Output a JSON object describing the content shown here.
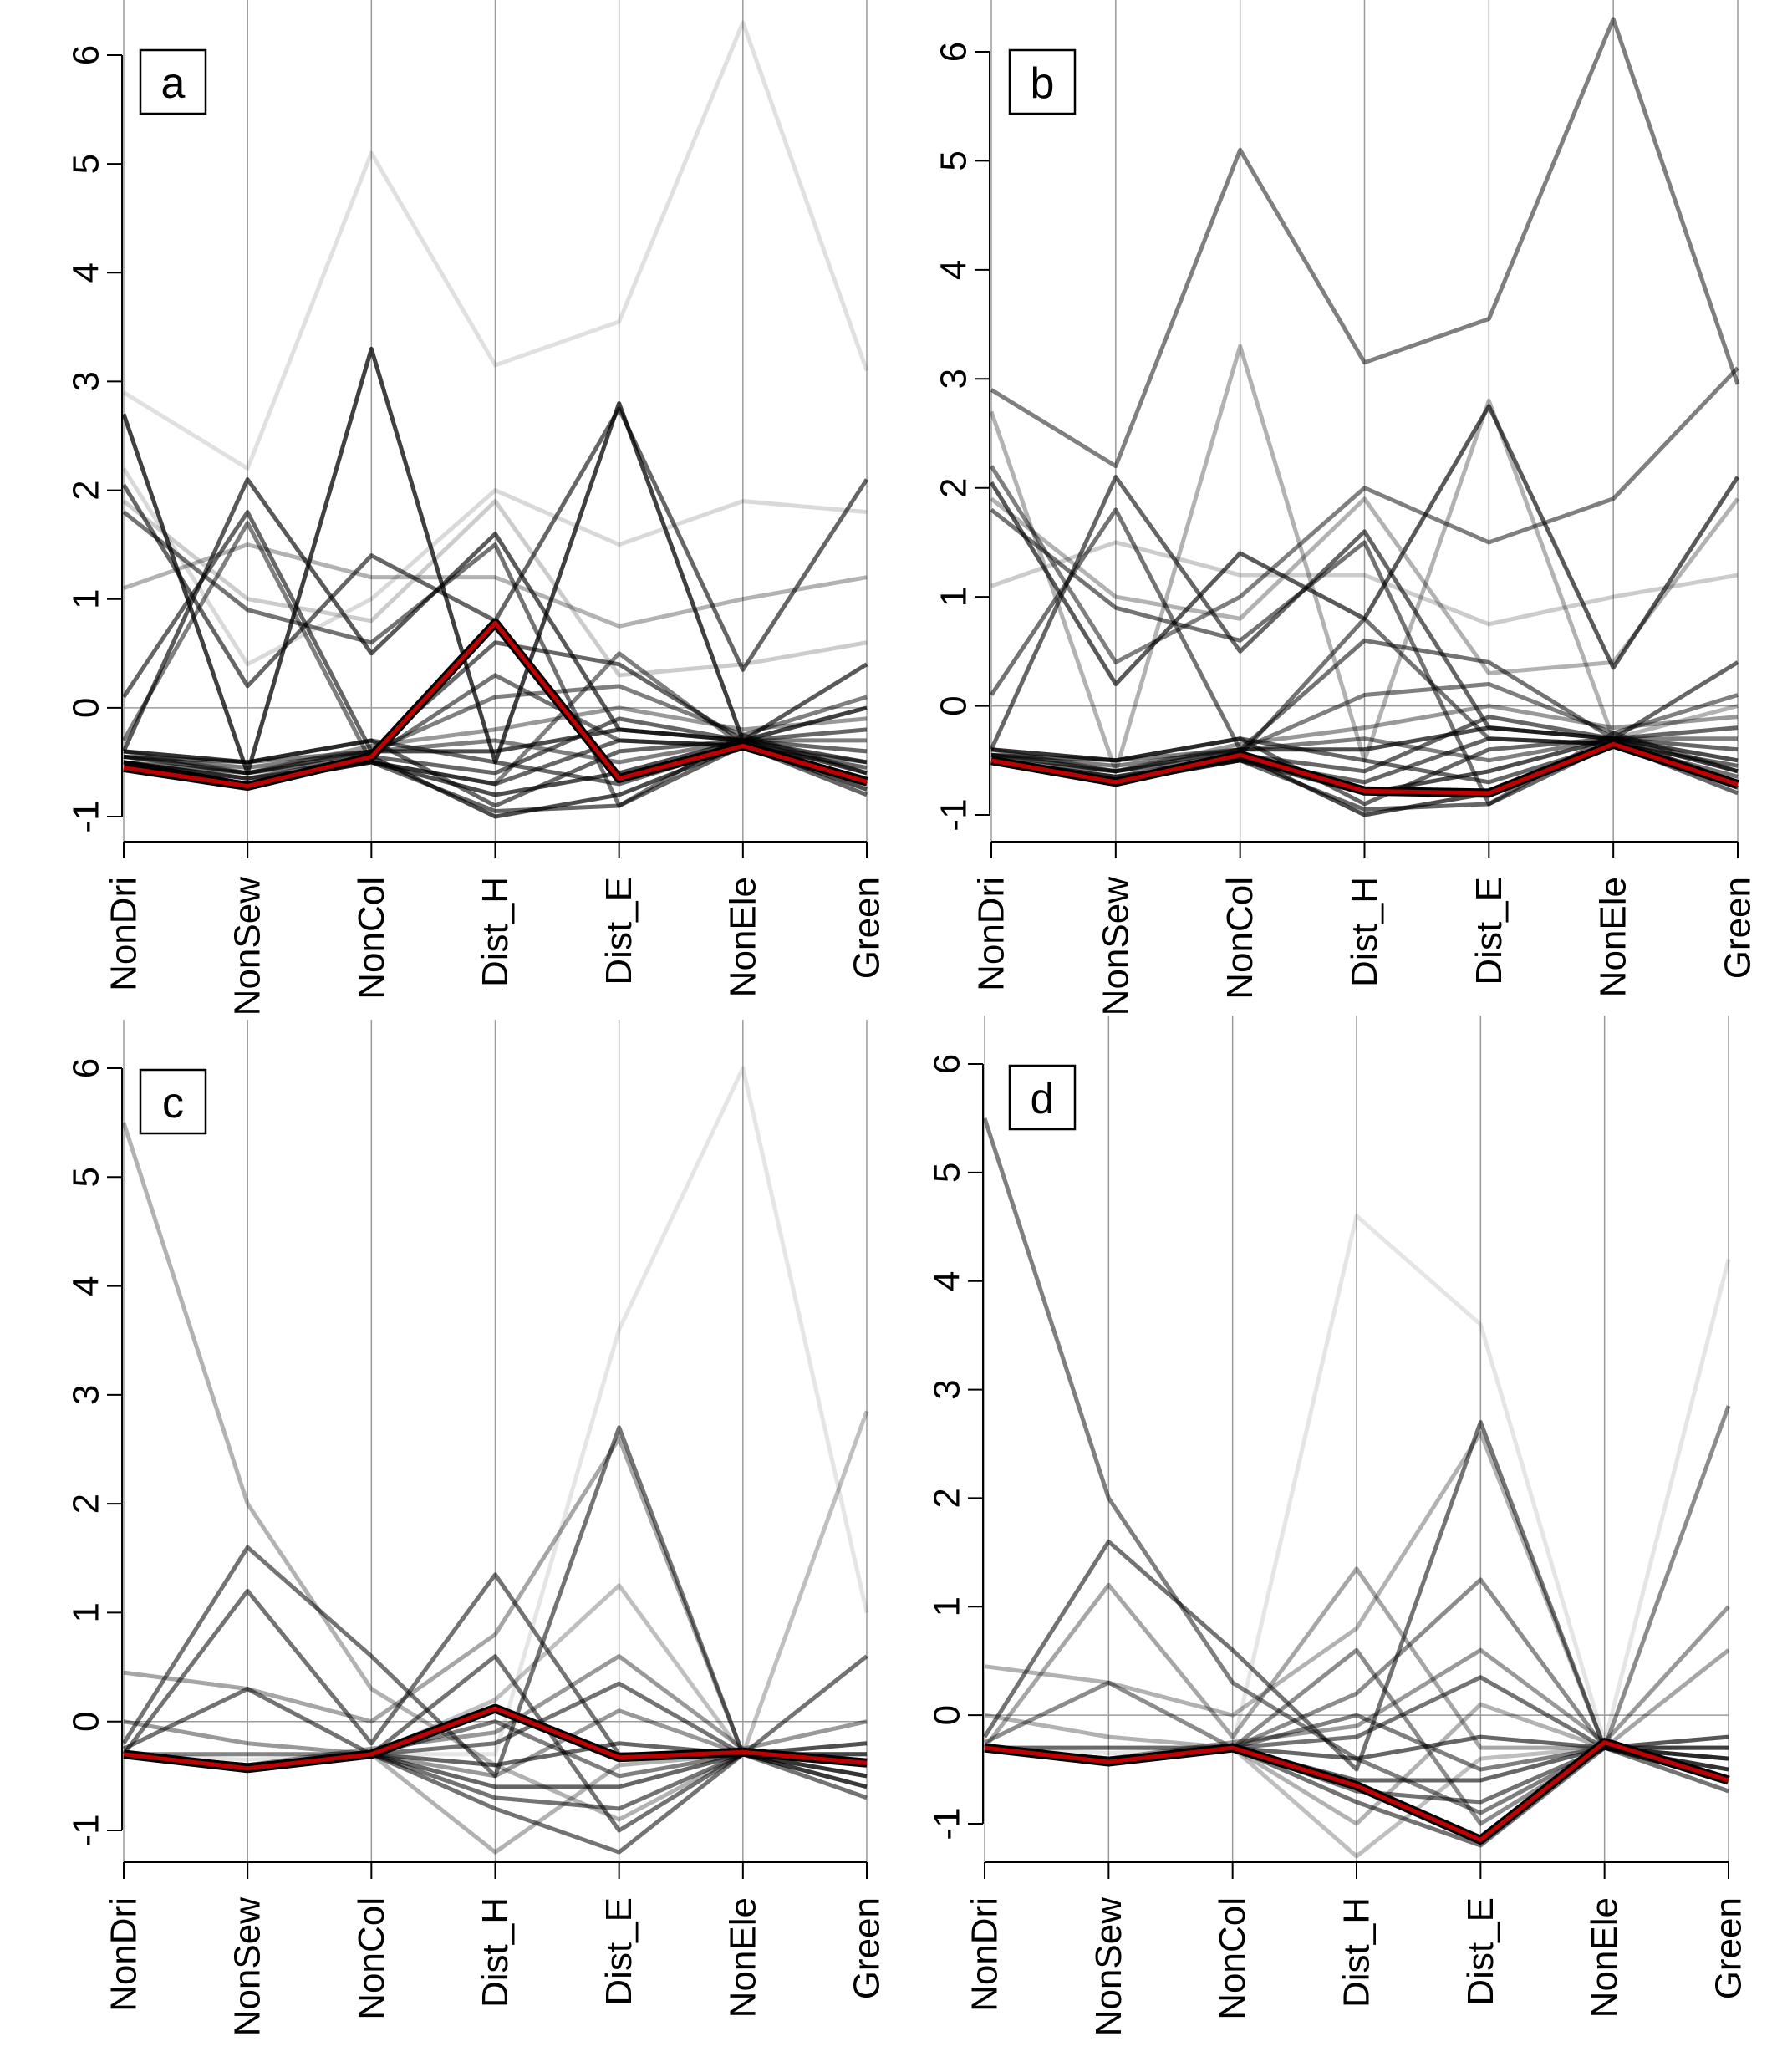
{
  "chart_data": [
    {
      "type": "line",
      "panel_label": "a",
      "categories": [
        "NonDri",
        "NonSew",
        "NonCol",
        "Dist_H",
        "Dist_E",
        "NonEle",
        "Green"
      ],
      "ylim": [
        -1.3,
        6.2
      ],
      "yticks": [
        -1,
        0,
        1,
        2,
        3,
        4,
        5,
        6
      ],
      "grid": "vertical lines at each category",
      "background_series": [
        {
          "values": [
            2.7,
            -0.6,
            3.3,
            -0.5,
            2.8,
            -0.3,
            0.0
          ],
          "opacity": 0.75
        },
        {
          "values": [
            2.05,
            0.2,
            1.4,
            0.8,
            2.75,
            0.35,
            2.1
          ],
          "opacity": 0.6
        },
        {
          "values": [
            -0.4,
            2.1,
            0.5,
            1.6,
            -0.2,
            -0.3,
            0.4
          ],
          "opacity": 0.65
        },
        {
          "values": [
            1.8,
            0.9,
            0.6,
            1.5,
            -0.9,
            -0.25,
            -0.6
          ],
          "opacity": 0.55
        },
        {
          "values": [
            0.1,
            1.8,
            -0.4,
            0.6,
            0.4,
            -0.3,
            -0.7
          ],
          "opacity": 0.6
        },
        {
          "values": [
            -0.3,
            1.7,
            -0.5,
            -0.7,
            0.5,
            -0.35,
            -0.5
          ],
          "opacity": 0.5
        },
        {
          "values": [
            1.1,
            1.5,
            1.2,
            1.2,
            0.75,
            1.0,
            1.2
          ],
          "opacity": 0.3
        },
        {
          "values": [
            2.9,
            2.2,
            5.1,
            3.15,
            3.55,
            6.3,
            3.1
          ],
          "opacity": 0.12
        },
        {
          "values": [
            2.2,
            0.4,
            1.0,
            2.0,
            1.5,
            1.9,
            1.8
          ],
          "opacity": 0.15
        },
        {
          "values": [
            1.9,
            1.0,
            0.8,
            1.9,
            0.3,
            0.4,
            0.6
          ],
          "opacity": 0.2
        },
        {
          "values": [
            -0.4,
            -0.5,
            -0.3,
            -0.9,
            -0.4,
            -0.3,
            -0.2
          ],
          "opacity": 0.6
        },
        {
          "values": [
            -0.45,
            -0.6,
            -0.4,
            -0.4,
            -0.2,
            -0.3,
            -0.6
          ],
          "opacity": 0.7
        },
        {
          "values": [
            -0.5,
            -0.7,
            -0.45,
            -1.0,
            -0.8,
            -0.35,
            -0.75
          ],
          "opacity": 0.7
        },
        {
          "values": [
            -0.5,
            -0.65,
            -0.45,
            -0.6,
            -0.1,
            -0.3,
            -0.4
          ],
          "opacity": 0.6
        },
        {
          "values": [
            -0.45,
            -0.55,
            -0.4,
            0.1,
            0.2,
            -0.25,
            0.1
          ],
          "opacity": 0.5
        },
        {
          "values": [
            -0.5,
            -0.7,
            -0.5,
            -0.8,
            -0.6,
            -0.3,
            -0.5
          ],
          "opacity": 0.7
        },
        {
          "values": [
            -0.4,
            -0.5,
            -0.4,
            -0.3,
            -0.5,
            -0.3,
            -0.3
          ],
          "opacity": 0.5
        },
        {
          "values": [
            -0.5,
            -0.6,
            -0.45,
            0.3,
            -0.3,
            -0.35,
            -0.65
          ],
          "opacity": 0.55
        },
        {
          "values": [
            -0.45,
            -0.5,
            -0.3,
            -0.5,
            -0.7,
            -0.35,
            -0.7
          ],
          "opacity": 0.6
        },
        {
          "values": [
            -0.5,
            -0.65,
            -0.5,
            -0.95,
            -0.9,
            -0.35,
            -0.8
          ],
          "opacity": 0.6
        },
        {
          "values": [
            -0.4,
            -0.6,
            -0.35,
            -0.2,
            0.0,
            -0.2,
            -0.1
          ],
          "opacity": 0.4
        },
        {
          "values": [
            -0.5,
            -0.7,
            -0.5,
            -0.7,
            -0.3,
            -0.35,
            -0.55
          ],
          "opacity": 0.6
        }
      ],
      "highlight_series": {
        "values": [
          -0.55,
          -0.72,
          -0.45,
          0.78,
          -0.65,
          -0.35,
          -0.68
        ],
        "color": "#c00000"
      }
    },
    {
      "type": "line",
      "panel_label": "b",
      "categories": [
        "NonDri",
        "NonSew",
        "NonCol",
        "Dist_H",
        "Dist_E",
        "NonEle",
        "Green"
      ],
      "ylim": [
        -1.3,
        6.2
      ],
      "yticks": [
        -1,
        0,
        1,
        2,
        3,
        4,
        5,
        6
      ],
      "grid": "vertical lines at each category",
      "background_series": [
        {
          "values": [
            2.9,
            2.2,
            5.1,
            3.15,
            3.55,
            6.3,
            2.95
          ],
          "opacity": 0.5
        },
        {
          "values": [
            2.7,
            -0.6,
            3.3,
            -0.5,
            2.8,
            -0.3,
            0.0
          ],
          "opacity": 0.3
        },
        {
          "values": [
            2.05,
            0.2,
            1.4,
            0.8,
            2.75,
            0.35,
            2.1
          ],
          "opacity": 0.65
        },
        {
          "values": [
            -0.4,
            2.1,
            0.5,
            1.6,
            -0.2,
            -0.3,
            0.4
          ],
          "opacity": 0.6
        },
        {
          "values": [
            1.8,
            0.9,
            0.6,
            1.5,
            -0.9,
            -0.25,
            -0.6
          ],
          "opacity": 0.55
        },
        {
          "values": [
            0.1,
            1.8,
            -0.4,
            0.6,
            0.4,
            -0.3,
            -0.7
          ],
          "opacity": 0.55
        },
        {
          "values": [
            2.2,
            0.4,
            1.0,
            2.0,
            1.5,
            1.9,
            3.1
          ],
          "opacity": 0.5
        },
        {
          "values": [
            1.1,
            1.5,
            1.2,
            1.2,
            0.75,
            1.0,
            1.2
          ],
          "opacity": 0.2
        },
        {
          "values": [
            1.9,
            1.0,
            0.8,
            1.9,
            0.3,
            0.4,
            1.9
          ],
          "opacity": 0.3
        },
        {
          "values": [
            -0.4,
            -0.5,
            -0.3,
            -0.9,
            -0.4,
            -0.3,
            -0.2
          ],
          "opacity": 0.6
        },
        {
          "values": [
            -0.45,
            -0.6,
            -0.4,
            -0.4,
            -0.2,
            -0.3,
            -0.6
          ],
          "opacity": 0.7
        },
        {
          "values": [
            -0.5,
            -0.7,
            -0.45,
            -1.0,
            -0.8,
            -0.35,
            -0.75
          ],
          "opacity": 0.7
        },
        {
          "values": [
            -0.5,
            -0.65,
            -0.45,
            -0.6,
            -0.1,
            -0.3,
            -0.4
          ],
          "opacity": 0.6
        },
        {
          "values": [
            -0.45,
            -0.55,
            -0.4,
            0.1,
            0.2,
            -0.25,
            0.1
          ],
          "opacity": 0.5
        },
        {
          "values": [
            -0.5,
            -0.7,
            -0.5,
            -0.8,
            -0.6,
            -0.3,
            -0.5
          ],
          "opacity": 0.7
        },
        {
          "values": [
            -0.4,
            -0.5,
            -0.4,
            -0.3,
            -0.5,
            -0.3,
            -0.3
          ],
          "opacity": 0.5
        },
        {
          "values": [
            -0.5,
            -0.6,
            -0.45,
            0.8,
            -0.3,
            -0.35,
            -0.65
          ],
          "opacity": 0.55
        },
        {
          "values": [
            -0.45,
            -0.5,
            -0.3,
            -0.5,
            -0.7,
            -0.35,
            -0.7
          ],
          "opacity": 0.6
        },
        {
          "values": [
            -0.5,
            -0.65,
            -0.5,
            -0.95,
            -0.9,
            -0.35,
            -0.8
          ],
          "opacity": 0.6
        },
        {
          "values": [
            -0.4,
            -0.6,
            -0.35,
            -0.2,
            0.0,
            -0.2,
            -0.1
          ],
          "opacity": 0.4
        },
        {
          "values": [
            -0.5,
            -0.7,
            -0.5,
            -0.7,
            -0.3,
            -0.35,
            -0.55
          ],
          "opacity": 0.6
        }
      ],
      "highlight_series": {
        "values": [
          -0.5,
          -0.7,
          -0.45,
          -0.78,
          -0.8,
          -0.35,
          -0.72
        ],
        "color": "#c00000"
      }
    },
    {
      "type": "line",
      "panel_label": "c",
      "categories": [
        "NonDri",
        "NonSew",
        "NonCol",
        "Dist_H",
        "Dist_E",
        "NonEle",
        "Green"
      ],
      "ylim": [
        -1.3,
        6.2
      ],
      "yticks": [
        -1,
        0,
        1,
        2,
        3,
        4,
        5,
        6
      ],
      "grid": "vertical lines at each category; horizontal line at 0",
      "background_series": [
        {
          "values": [
            5.5,
            2.0,
            0.3,
            -0.4,
            -0.9,
            -0.3,
            -0.3
          ],
          "opacity": 0.3
        },
        {
          "values": [
            -0.2,
            1.6,
            0.6,
            -0.5,
            2.7,
            -0.3,
            -0.5
          ],
          "opacity": 0.55
        },
        {
          "values": [
            -0.3,
            1.2,
            -0.2,
            1.35,
            -0.3,
            -0.3,
            0.6
          ],
          "opacity": 0.55
        },
        {
          "values": [
            0.45,
            0.3,
            0.0,
            0.8,
            2.6,
            -0.3,
            -0.3
          ],
          "opacity": 0.35
        },
        {
          "values": [
            -0.25,
            0.3,
            -0.3,
            0.6,
            -1.0,
            -0.3,
            -0.6
          ],
          "opacity": 0.55
        },
        {
          "values": [
            -0.3,
            -0.3,
            -0.3,
            0.2,
            1.25,
            -0.3,
            2.85
          ],
          "opacity": 0.25
        },
        {
          "values": [
            -0.3,
            -0.35,
            -0.3,
            -0.3,
            3.6,
            6.0,
            1.0
          ],
          "opacity": 0.1
        },
        {
          "values": [
            -0.3,
            -0.4,
            -0.3,
            -0.6,
            -0.6,
            -0.3,
            -0.4
          ],
          "opacity": 0.6
        },
        {
          "values": [
            -0.3,
            -0.4,
            -0.3,
            -0.8,
            -1.2,
            -0.3,
            -0.5
          ],
          "opacity": 0.55
        },
        {
          "values": [
            -0.3,
            -0.45,
            -0.3,
            -0.2,
            0.35,
            -0.3,
            -0.2
          ],
          "opacity": 0.55
        },
        {
          "values": [
            -0.3,
            -0.4,
            -0.3,
            0.0,
            -0.5,
            -0.3,
            -0.6
          ],
          "opacity": 0.5
        },
        {
          "values": [
            -0.3,
            -0.45,
            -0.3,
            -0.4,
            -0.2,
            -0.3,
            -0.4
          ],
          "opacity": 0.6
        },
        {
          "values": [
            -0.3,
            -0.4,
            -0.25,
            -0.1,
            0.6,
            -0.25,
            0.0
          ],
          "opacity": 0.4
        },
        {
          "values": [
            -0.3,
            -0.45,
            -0.3,
            -0.7,
            -0.8,
            -0.3,
            -0.7
          ],
          "opacity": 0.55
        },
        {
          "values": [
            0.0,
            -0.2,
            -0.3,
            -0.5,
            0.1,
            -0.3,
            -0.3
          ],
          "opacity": 0.4
        },
        {
          "values": [
            -0.3,
            -0.3,
            -0.3,
            -1.2,
            -0.4,
            -0.3,
            -0.2
          ],
          "opacity": 0.3
        }
      ],
      "highlight_series": {
        "values": [
          -0.3,
          -0.43,
          -0.3,
          0.12,
          -0.33,
          -0.28,
          -0.38
        ],
        "color": "#c00000"
      }
    },
    {
      "type": "line",
      "panel_label": "d",
      "categories": [
        "NonDri",
        "NonSew",
        "NonCol",
        "Dist_H",
        "Dist_E",
        "NonEle",
        "Green"
      ],
      "ylim": [
        -1.3,
        6.2
      ],
      "yticks": [
        -1,
        0,
        1,
        2,
        3,
        4,
        5,
        6
      ],
      "grid": "vertical lines at each category; horizontal line at 0",
      "background_series": [
        {
          "values": [
            5.5,
            2.0,
            0.3,
            -0.4,
            -0.9,
            -0.3,
            -0.3
          ],
          "opacity": 0.5
        },
        {
          "values": [
            -0.2,
            1.6,
            0.6,
            -0.5,
            2.7,
            -0.3,
            -0.5
          ],
          "opacity": 0.55
        },
        {
          "values": [
            -0.3,
            1.2,
            -0.2,
            1.35,
            -0.3,
            -0.3,
            0.6
          ],
          "opacity": 0.35
        },
        {
          "values": [
            0.45,
            0.3,
            0.0,
            0.8,
            2.6,
            -0.3,
            -0.3
          ],
          "opacity": 0.3
        },
        {
          "values": [
            -0.25,
            0.3,
            -0.3,
            0.6,
            -1.0,
            -0.3,
            -0.6
          ],
          "opacity": 0.45
        },
        {
          "values": [
            -0.3,
            -0.3,
            -0.3,
            0.2,
            1.25,
            -0.3,
            2.85
          ],
          "opacity": 0.45
        },
        {
          "values": [
            -0.3,
            -0.35,
            -0.3,
            4.6,
            3.6,
            -0.25,
            4.2
          ],
          "opacity": 0.1
        },
        {
          "values": [
            -0.3,
            -0.4,
            -0.3,
            -0.6,
            -0.6,
            -0.3,
            -0.4
          ],
          "opacity": 0.6
        },
        {
          "values": [
            -0.3,
            -0.4,
            -0.3,
            -0.8,
            -1.2,
            -0.3,
            -0.5
          ],
          "opacity": 0.55
        },
        {
          "values": [
            -0.3,
            -0.45,
            -0.3,
            -0.2,
            0.35,
            -0.3,
            -0.2
          ],
          "opacity": 0.55
        },
        {
          "values": [
            -0.3,
            -0.4,
            -0.3,
            0.0,
            -0.5,
            -0.3,
            -0.6
          ],
          "opacity": 0.5
        },
        {
          "values": [
            -0.3,
            -0.45,
            -0.3,
            -0.4,
            -0.2,
            -0.3,
            -0.4
          ],
          "opacity": 0.6
        },
        {
          "values": [
            -0.3,
            -0.4,
            -0.25,
            -0.1,
            0.6,
            -0.25,
            1.0
          ],
          "opacity": 0.4
        },
        {
          "values": [
            -0.3,
            -0.45,
            -0.3,
            -0.7,
            -0.8,
            -0.3,
            -0.7
          ],
          "opacity": 0.55
        },
        {
          "values": [
            0.0,
            -0.2,
            -0.3,
            -1.0,
            0.1,
            -0.3,
            -0.3
          ],
          "opacity": 0.3
        },
        {
          "values": [
            -0.3,
            -0.3,
            -0.3,
            -1.3,
            -0.4,
            -0.3,
            -0.2
          ],
          "opacity": 0.25
        }
      ],
      "highlight_series": {
        "values": [
          -0.3,
          -0.43,
          -0.3,
          -0.65,
          -1.15,
          -0.25,
          -0.6
        ],
        "color": "#c00000"
      }
    }
  ]
}
